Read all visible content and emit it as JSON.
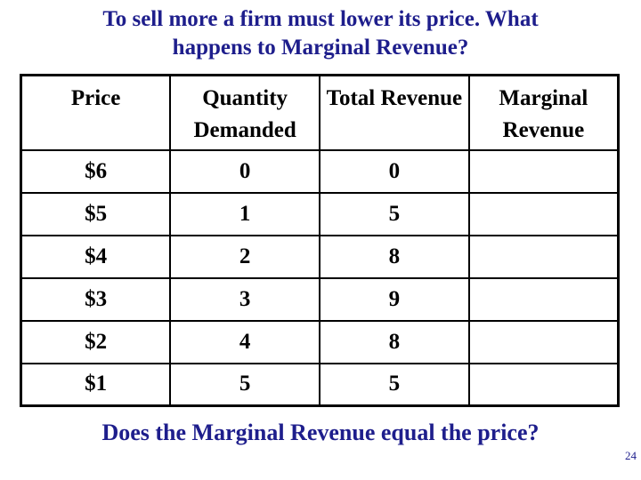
{
  "title": {
    "lines": [
      "To sell more a firm must lower its price. What",
      "happens to Marginal Revenue?"
    ]
  },
  "table": {
    "headers": [
      "Price",
      "Quantity Demanded",
      "Total Revenue",
      "Marginal Revenue"
    ],
    "rows": [
      {
        "price": "$6",
        "quantity_demanded": "0",
        "total_revenue": "0",
        "marginal_revenue": ""
      },
      {
        "price": "$5",
        "quantity_demanded": "1",
        "total_revenue": "5",
        "marginal_revenue": ""
      },
      {
        "price": "$4",
        "quantity_demanded": "2",
        "total_revenue": "8",
        "marginal_revenue": ""
      },
      {
        "price": "$3",
        "quantity_demanded": "3",
        "total_revenue": "9",
        "marginal_revenue": ""
      },
      {
        "price": "$2",
        "quantity_demanded": "4",
        "total_revenue": "8",
        "marginal_revenue": ""
      },
      {
        "price": "$1",
        "quantity_demanded": "5",
        "total_revenue": "5",
        "marginal_revenue": ""
      }
    ]
  },
  "chart_data": {
    "type": "table",
    "title": "To sell more a firm must lower its price. What happens to Marginal Revenue?",
    "columns": [
      "Price",
      "Quantity Demanded",
      "Total Revenue",
      "Marginal Revenue"
    ],
    "rows": [
      [
        "$6",
        "0",
        "0",
        ""
      ],
      [
        "$5",
        "1",
        "5",
        ""
      ],
      [
        "$4",
        "2",
        "8",
        ""
      ],
      [
        "$3",
        "3",
        "9",
        ""
      ],
      [
        "$2",
        "4",
        "8",
        ""
      ],
      [
        "$1",
        "5",
        "5",
        ""
      ]
    ]
  },
  "footer": {
    "question": "Does the Marginal Revenue equal the price?",
    "page_number": "24"
  },
  "colors": {
    "title_text": "#1e1e8c",
    "question_text": "#1e1e8c",
    "page_number_text": "#1e1e8c",
    "table_text": "#000000",
    "table_border": "#000000",
    "background": "#ffffff"
  }
}
